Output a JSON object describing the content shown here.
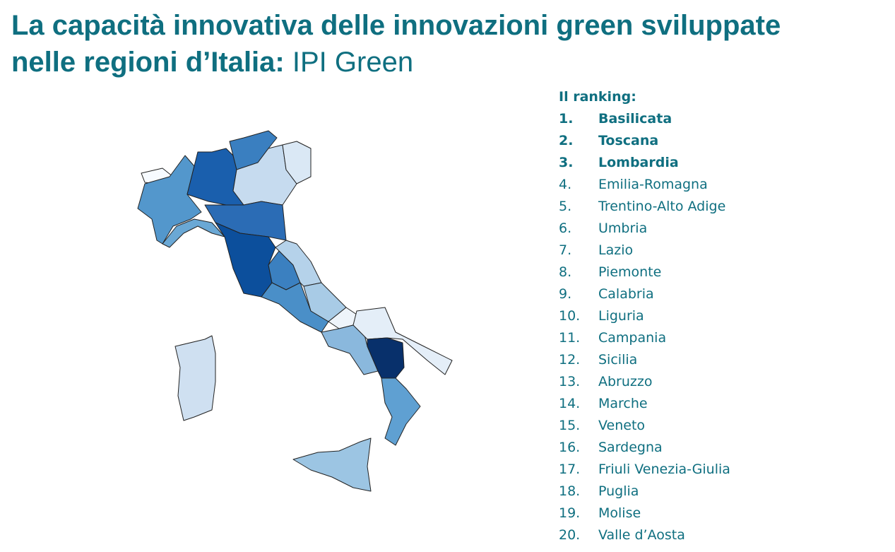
{
  "title": {
    "line1": "La capacità innovativa delle innovazioni green sviluppate",
    "line2_bold": "nelle regioni d’Italia:",
    "line2_light": "IPI Green"
  },
  "ranking": {
    "header": "Il ranking:",
    "items": [
      {
        "rank": "1.",
        "name": "Basilicata"
      },
      {
        "rank": "2.",
        "name": "Toscana"
      },
      {
        "rank": "3.",
        "name": "Lombardia"
      },
      {
        "rank": "4.",
        "name": "Emilia-Romagna"
      },
      {
        "rank": "5.",
        "name": "Trentino-Alto Adige"
      },
      {
        "rank": "6.",
        "name": "Umbria"
      },
      {
        "rank": "7.",
        "name": "Lazio"
      },
      {
        "rank": "8.",
        "name": "Piemonte"
      },
      {
        "rank": "9.",
        "name": "Calabria"
      },
      {
        "rank": "10.",
        "name": "Liguria"
      },
      {
        "rank": "11.",
        "name": "Campania"
      },
      {
        "rank": "12.",
        "name": "Sicilia"
      },
      {
        "rank": "13.",
        "name": "Abruzzo"
      },
      {
        "rank": "14.",
        "name": "Marche"
      },
      {
        "rank": "15.",
        "name": "Veneto"
      },
      {
        "rank": "16.",
        "name": "Sardegna"
      },
      {
        "rank": "17.",
        "name": "Friuli Venezia-Giulia"
      },
      {
        "rank": "18.",
        "name": "Puglia"
      },
      {
        "rank": "19.",
        "name": "Molise"
      },
      {
        "rank": "20.",
        "name": "Valle d’Aosta"
      }
    ]
  }
}
